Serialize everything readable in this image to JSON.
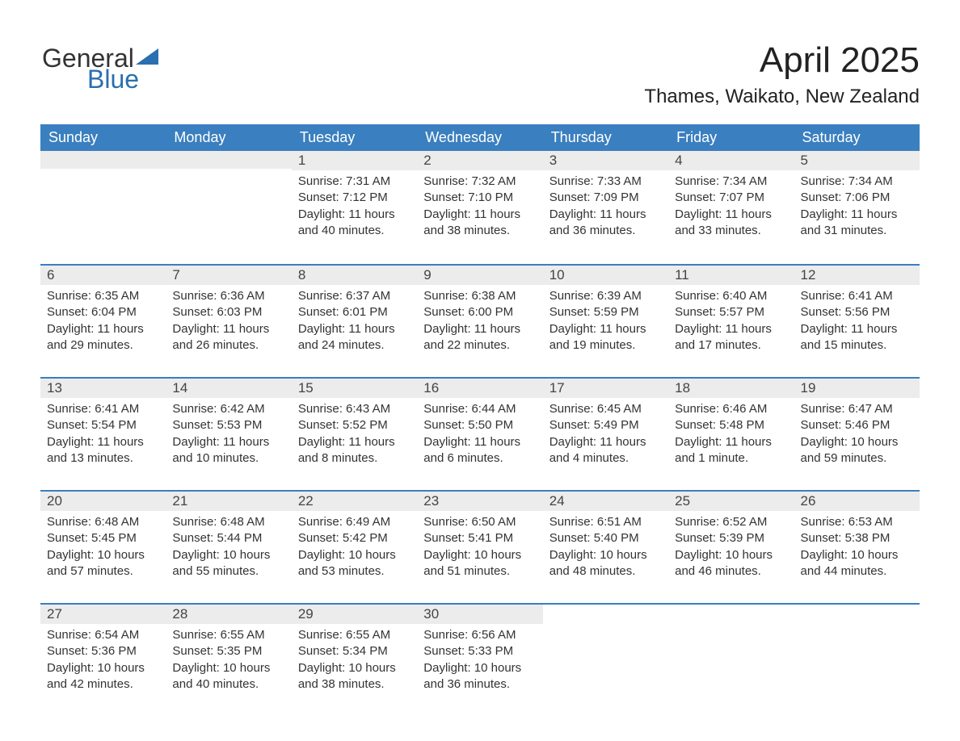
{
  "logo": {
    "text1": "General",
    "text2": "Blue",
    "triangle_color": "#2a6fb0"
  },
  "title": "April 2025",
  "location": "Thames, Waikato, New Zealand",
  "colors": {
    "header_bg": "#3a7fbf",
    "header_text": "#ffffff",
    "daynum_bg": "#ececec",
    "week_divider": "#3a7fbf",
    "body_text": "#333333"
  },
  "day_headers": [
    "Sunday",
    "Monday",
    "Tuesday",
    "Wednesday",
    "Thursday",
    "Friday",
    "Saturday"
  ],
  "weeks": [
    [
      {
        "n": "",
        "lines": []
      },
      {
        "n": "",
        "lines": []
      },
      {
        "n": "1",
        "lines": [
          "Sunrise: 7:31 AM",
          "Sunset: 7:12 PM",
          "Daylight: 11 hours and 40 minutes."
        ]
      },
      {
        "n": "2",
        "lines": [
          "Sunrise: 7:32 AM",
          "Sunset: 7:10 PM",
          "Daylight: 11 hours and 38 minutes."
        ]
      },
      {
        "n": "3",
        "lines": [
          "Sunrise: 7:33 AM",
          "Sunset: 7:09 PM",
          "Daylight: 11 hours and 36 minutes."
        ]
      },
      {
        "n": "4",
        "lines": [
          "Sunrise: 7:34 AM",
          "Sunset: 7:07 PM",
          "Daylight: 11 hours and 33 minutes."
        ]
      },
      {
        "n": "5",
        "lines": [
          "Sunrise: 7:34 AM",
          "Sunset: 7:06 PM",
          "Daylight: 11 hours and 31 minutes."
        ]
      }
    ],
    [
      {
        "n": "6",
        "lines": [
          "Sunrise: 6:35 AM",
          "Sunset: 6:04 PM",
          "Daylight: 11 hours and 29 minutes."
        ]
      },
      {
        "n": "7",
        "lines": [
          "Sunrise: 6:36 AM",
          "Sunset: 6:03 PM",
          "Daylight: 11 hours and 26 minutes."
        ]
      },
      {
        "n": "8",
        "lines": [
          "Sunrise: 6:37 AM",
          "Sunset: 6:01 PM",
          "Daylight: 11 hours and 24 minutes."
        ]
      },
      {
        "n": "9",
        "lines": [
          "Sunrise: 6:38 AM",
          "Sunset: 6:00 PM",
          "Daylight: 11 hours and 22 minutes."
        ]
      },
      {
        "n": "10",
        "lines": [
          "Sunrise: 6:39 AM",
          "Sunset: 5:59 PM",
          "Daylight: 11 hours and 19 minutes."
        ]
      },
      {
        "n": "11",
        "lines": [
          "Sunrise: 6:40 AM",
          "Sunset: 5:57 PM",
          "Daylight: 11 hours and 17 minutes."
        ]
      },
      {
        "n": "12",
        "lines": [
          "Sunrise: 6:41 AM",
          "Sunset: 5:56 PM",
          "Daylight: 11 hours and 15 minutes."
        ]
      }
    ],
    [
      {
        "n": "13",
        "lines": [
          "Sunrise: 6:41 AM",
          "Sunset: 5:54 PM",
          "Daylight: 11 hours and 13 minutes."
        ]
      },
      {
        "n": "14",
        "lines": [
          "Sunrise: 6:42 AM",
          "Sunset: 5:53 PM",
          "Daylight: 11 hours and 10 minutes."
        ]
      },
      {
        "n": "15",
        "lines": [
          "Sunrise: 6:43 AM",
          "Sunset: 5:52 PM",
          "Daylight: 11 hours and 8 minutes."
        ]
      },
      {
        "n": "16",
        "lines": [
          "Sunrise: 6:44 AM",
          "Sunset: 5:50 PM",
          "Daylight: 11 hours and 6 minutes."
        ]
      },
      {
        "n": "17",
        "lines": [
          "Sunrise: 6:45 AM",
          "Sunset: 5:49 PM",
          "Daylight: 11 hours and 4 minutes."
        ]
      },
      {
        "n": "18",
        "lines": [
          "Sunrise: 6:46 AM",
          "Sunset: 5:48 PM",
          "Daylight: 11 hours and 1 minute."
        ]
      },
      {
        "n": "19",
        "lines": [
          "Sunrise: 6:47 AM",
          "Sunset: 5:46 PM",
          "Daylight: 10 hours and 59 minutes."
        ]
      }
    ],
    [
      {
        "n": "20",
        "lines": [
          "Sunrise: 6:48 AM",
          "Sunset: 5:45 PM",
          "Daylight: 10 hours and 57 minutes."
        ]
      },
      {
        "n": "21",
        "lines": [
          "Sunrise: 6:48 AM",
          "Sunset: 5:44 PM",
          "Daylight: 10 hours and 55 minutes."
        ]
      },
      {
        "n": "22",
        "lines": [
          "Sunrise: 6:49 AM",
          "Sunset: 5:42 PM",
          "Daylight: 10 hours and 53 minutes."
        ]
      },
      {
        "n": "23",
        "lines": [
          "Sunrise: 6:50 AM",
          "Sunset: 5:41 PM",
          "Daylight: 10 hours and 51 minutes."
        ]
      },
      {
        "n": "24",
        "lines": [
          "Sunrise: 6:51 AM",
          "Sunset: 5:40 PM",
          "Daylight: 10 hours and 48 minutes."
        ]
      },
      {
        "n": "25",
        "lines": [
          "Sunrise: 6:52 AM",
          "Sunset: 5:39 PM",
          "Daylight: 10 hours and 46 minutes."
        ]
      },
      {
        "n": "26",
        "lines": [
          "Sunrise: 6:53 AM",
          "Sunset: 5:38 PM",
          "Daylight: 10 hours and 44 minutes."
        ]
      }
    ],
    [
      {
        "n": "27",
        "lines": [
          "Sunrise: 6:54 AM",
          "Sunset: 5:36 PM",
          "Daylight: 10 hours and 42 minutes."
        ]
      },
      {
        "n": "28",
        "lines": [
          "Sunrise: 6:55 AM",
          "Sunset: 5:35 PM",
          "Daylight: 10 hours and 40 minutes."
        ]
      },
      {
        "n": "29",
        "lines": [
          "Sunrise: 6:55 AM",
          "Sunset: 5:34 PM",
          "Daylight: 10 hours and 38 minutes."
        ]
      },
      {
        "n": "30",
        "lines": [
          "Sunrise: 6:56 AM",
          "Sunset: 5:33 PM",
          "Daylight: 10 hours and 36 minutes."
        ]
      },
      {
        "n": "",
        "lines": []
      },
      {
        "n": "",
        "lines": []
      },
      {
        "n": "",
        "lines": []
      }
    ]
  ]
}
